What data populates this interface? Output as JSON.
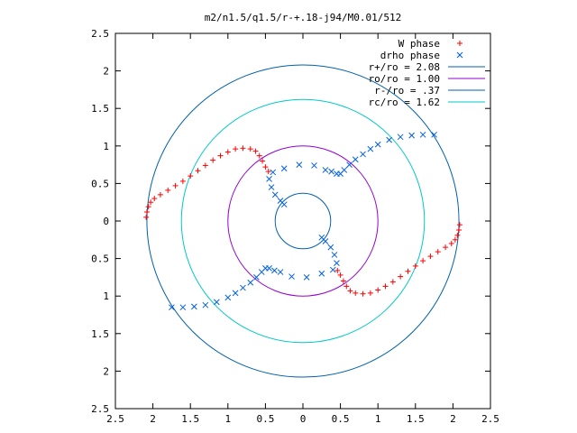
{
  "chart_data": {
    "type": "scatter",
    "title": "m2/n1.5/q1.5/r-+.18-j94/M0.01/512",
    "xlabel": "",
    "ylabel": "",
    "xlim": [
      -2.5,
      2.5
    ],
    "ylim": [
      -2.5,
      2.5
    ],
    "grid": false,
    "legend_position": "top-right",
    "x_tick_labels": [
      "2.5",
      "2",
      "1.5",
      "1",
      "0.5",
      "0",
      "0.5",
      "1",
      "1.5",
      "2",
      "2.5"
    ],
    "y_tick_labels": [
      "2.5",
      "2",
      "1.5",
      "1",
      "0.5",
      "0",
      "0.5",
      "1",
      "1.5",
      "2",
      "2.5"
    ],
    "series": [
      {
        "name": "W phase",
        "marker": "plus",
        "color": "#ff0000",
        "values": [
          [
            -2.09,
            0.05
          ],
          [
            -2.08,
            0.12
          ],
          [
            -2.06,
            0.19
          ],
          [
            -2.03,
            0.25
          ],
          [
            -1.98,
            0.3
          ],
          [
            -1.9,
            0.35
          ],
          [
            -1.8,
            0.41
          ],
          [
            -1.7,
            0.47
          ],
          [
            -1.6,
            0.53
          ],
          [
            -1.5,
            0.6
          ],
          [
            -1.4,
            0.67
          ],
          [
            -1.3,
            0.74
          ],
          [
            -1.2,
            0.81
          ],
          [
            -1.1,
            0.87
          ],
          [
            -1.0,
            0.92
          ],
          [
            -0.9,
            0.96
          ],
          [
            -0.8,
            0.97
          ],
          [
            -0.7,
            0.96
          ],
          [
            -0.63,
            0.93
          ],
          [
            -0.58,
            0.87
          ],
          [
            -0.54,
            0.8
          ],
          [
            -0.5,
            0.72
          ],
          [
            -0.46,
            0.66
          ],
          [
            2.09,
            -0.05
          ],
          [
            2.08,
            -0.12
          ],
          [
            2.06,
            -0.19
          ],
          [
            2.03,
            -0.25
          ],
          [
            1.98,
            -0.3
          ],
          [
            1.9,
            -0.35
          ],
          [
            1.8,
            -0.41
          ],
          [
            1.7,
            -0.47
          ],
          [
            1.6,
            -0.53
          ],
          [
            1.5,
            -0.6
          ],
          [
            1.4,
            -0.67
          ],
          [
            1.3,
            -0.74
          ],
          [
            1.2,
            -0.81
          ],
          [
            1.1,
            -0.87
          ],
          [
            1.0,
            -0.92
          ],
          [
            0.9,
            -0.96
          ],
          [
            0.8,
            -0.97
          ],
          [
            0.7,
            -0.96
          ],
          [
            0.63,
            -0.93
          ],
          [
            0.58,
            -0.87
          ],
          [
            0.54,
            -0.8
          ],
          [
            0.5,
            -0.72
          ],
          [
            0.46,
            -0.66
          ]
        ]
      },
      {
        "name": "drho phase",
        "marker": "cross",
        "color": "#0060e0",
        "values": [
          [
            -1.75,
            -1.15
          ],
          [
            -1.6,
            -1.15
          ],
          [
            -1.45,
            -1.14
          ],
          [
            -1.3,
            -1.12
          ],
          [
            -1.15,
            -1.08
          ],
          [
            -1.0,
            -1.02
          ],
          [
            -0.9,
            -0.96
          ],
          [
            -0.8,
            -0.89
          ],
          [
            -0.7,
            -0.82
          ],
          [
            -0.62,
            -0.75
          ],
          [
            -0.55,
            -0.68
          ],
          [
            -0.5,
            -0.63
          ],
          [
            -0.45,
            -0.63
          ],
          [
            -0.38,
            -0.66
          ],
          [
            -0.3,
            -0.68
          ],
          [
            -0.15,
            -0.74
          ],
          [
            0.05,
            -0.75
          ],
          [
            0.25,
            -0.7
          ],
          [
            0.4,
            -0.65
          ],
          [
            0.45,
            -0.56
          ],
          [
            0.42,
            -0.45
          ],
          [
            0.37,
            -0.35
          ],
          [
            0.3,
            -0.27
          ],
          [
            0.25,
            -0.22
          ],
          [
            1.75,
            1.15
          ],
          [
            1.6,
            1.15
          ],
          [
            1.45,
            1.14
          ],
          [
            1.3,
            1.12
          ],
          [
            1.15,
            1.08
          ],
          [
            1.0,
            1.02
          ],
          [
            0.9,
            0.96
          ],
          [
            0.8,
            0.89
          ],
          [
            0.7,
            0.82
          ],
          [
            0.62,
            0.75
          ],
          [
            0.55,
            0.68
          ],
          [
            0.5,
            0.63
          ],
          [
            0.45,
            0.63
          ],
          [
            0.38,
            0.66
          ],
          [
            0.3,
            0.68
          ],
          [
            0.15,
            0.74
          ],
          [
            -0.05,
            0.75
          ],
          [
            -0.25,
            0.7
          ],
          [
            -0.4,
            0.65
          ],
          [
            -0.45,
            0.56
          ],
          [
            -0.42,
            0.45
          ],
          [
            -0.37,
            0.35
          ],
          [
            -0.3,
            0.27
          ],
          [
            -0.25,
            0.22
          ]
        ]
      }
    ],
    "circles": [
      {
        "name": "r+/ro = 2.08",
        "radius": 2.08,
        "color": "#0060ad"
      },
      {
        "name": "ro/ro = 1.00",
        "radius": 1.0,
        "color": "#9400d3"
      },
      {
        "name": "r-/ro = .37",
        "radius": 0.37,
        "color": "#0060ad"
      },
      {
        "name": "rc/ro = 1.62",
        "radius": 1.62,
        "color": "#00c8c8"
      }
    ]
  }
}
